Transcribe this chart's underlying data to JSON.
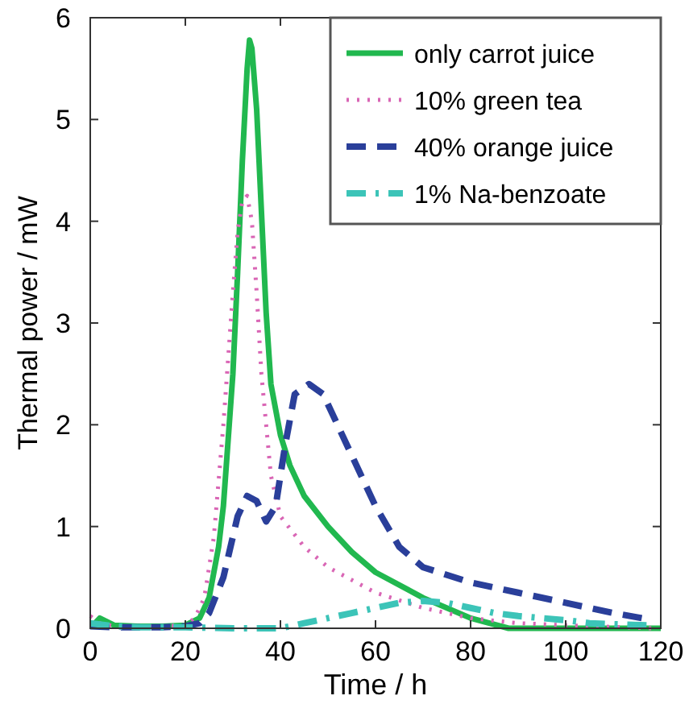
{
  "chart_data": {
    "type": "line",
    "xlabel": "Time / h",
    "ylabel": "Thermal power / mW",
    "xlim": [
      0,
      120
    ],
    "ylim": [
      0,
      6
    ],
    "xticks": [
      0,
      20,
      40,
      60,
      80,
      100,
      120
    ],
    "yticks": [
      0,
      1,
      2,
      3,
      4,
      5,
      6
    ],
    "grid": false,
    "legend": "top right",
    "marker": "none",
    "series": [
      {
        "name": "only carrot juice",
        "color": "#21b84f",
        "line_style": "solid",
        "x": [
          1,
          2,
          5,
          10,
          15,
          20,
          23,
          25,
          27,
          28,
          30,
          31,
          32,
          33,
          33.5,
          34,
          35,
          36,
          37,
          38,
          40,
          42,
          45,
          50,
          55,
          60,
          70,
          80,
          88,
          100,
          120
        ],
        "values": [
          0.05,
          0.1,
          0.03,
          0.02,
          0.02,
          0.03,
          0.1,
          0.3,
          0.8,
          1.2,
          2.5,
          3.5,
          4.6,
          5.5,
          5.78,
          5.7,
          5.1,
          4.1,
          3.1,
          2.4,
          1.9,
          1.6,
          1.3,
          1.0,
          0.75,
          0.55,
          0.3,
          0.1,
          0,
          0,
          0
        ]
      },
      {
        "name": "10% green tea",
        "color": "#d966b5",
        "line_style": "dotted",
        "x": [
          0,
          2,
          5,
          10,
          15,
          20,
          22,
          24,
          26,
          28,
          30,
          31,
          32,
          33,
          34,
          35,
          36,
          38,
          40,
          45,
          50,
          60,
          70,
          80,
          90,
          100,
          118
        ],
        "values": [
          0.12,
          0.05,
          0.02,
          0.02,
          0.02,
          0.03,
          0.1,
          0.3,
          0.9,
          2.0,
          3.3,
          3.9,
          4.2,
          4.25,
          4.0,
          3.3,
          2.5,
          1.5,
          1.1,
          0.8,
          0.6,
          0.35,
          0.2,
          0.1,
          0.05,
          0.03,
          0
        ]
      },
      {
        "name": "40% orange juice",
        "color": "#2a3f9a",
        "line_style": "dashed",
        "x": [
          0,
          5,
          10,
          15,
          20,
          23,
          25,
          28,
          31,
          33,
          35,
          37,
          39,
          41,
          43,
          46,
          49,
          52,
          56,
          60,
          65,
          70,
          80,
          90,
          100,
          110,
          116
        ],
        "values": [
          0.02,
          0.01,
          0.01,
          0.01,
          0.02,
          0.05,
          0.15,
          0.5,
          1.1,
          1.3,
          1.25,
          1.05,
          1.2,
          1.8,
          2.3,
          2.4,
          2.3,
          2.0,
          1.6,
          1.2,
          0.8,
          0.6,
          0.45,
          0.35,
          0.25,
          0.15,
          0.1
        ]
      },
      {
        "name": "1% Na-benzoate",
        "color": "#3cc4b8",
        "line_style": "dashdot",
        "x": [
          0,
          5,
          10,
          20,
          30,
          40,
          45,
          50,
          55,
          60,
          65,
          70,
          75,
          80,
          85,
          90,
          95,
          100,
          105,
          110,
          117
        ],
        "values": [
          0.05,
          0.02,
          0.01,
          0.01,
          0,
          0,
          0.05,
          0.1,
          0.15,
          0.2,
          0.25,
          0.27,
          0.25,
          0.2,
          0.15,
          0.12,
          0.1,
          0.08,
          0.05,
          0.04,
          0.03
        ]
      }
    ]
  }
}
